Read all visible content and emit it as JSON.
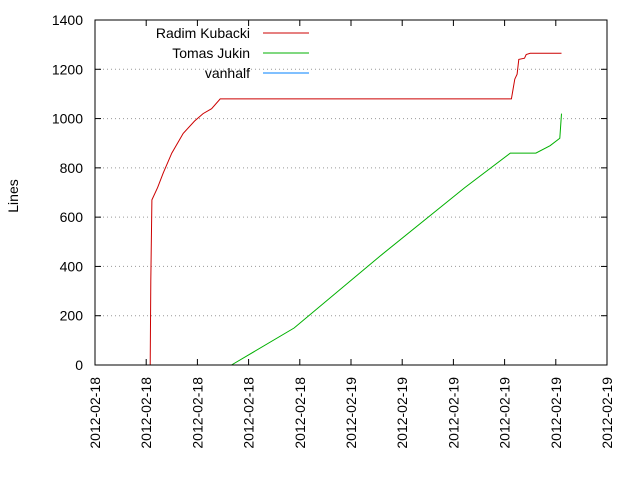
{
  "chart_data": {
    "type": "line",
    "title": "",
    "xlabel": "",
    "ylabel": "Lines",
    "ylim": [
      0,
      1400
    ],
    "xlim": [
      0,
      9
    ],
    "y_ticks": [
      0,
      200,
      400,
      600,
      800,
      1000,
      1200,
      1400
    ],
    "x_tick_labels": [
      "2012-02-18",
      "2012-02-18",
      "2012-02-18",
      "2012-02-18",
      "2012-02-18",
      "2012-02-19",
      "2012-02-19",
      "2012-02-19",
      "2012-02-19",
      "2012-02-19",
      "2012-02-19"
    ],
    "grid": {
      "horizontal": true,
      "vertical": false,
      "style": "dotted"
    },
    "legend_position": "top-left",
    "series": [
      {
        "name": "Radim Kubacki",
        "color": "#cc0000",
        "points": [
          [
            0.97,
            0
          ],
          [
            0.98,
            340
          ],
          [
            1.0,
            670
          ],
          [
            1.1,
            720
          ],
          [
            1.2,
            780
          ],
          [
            1.35,
            860
          ],
          [
            1.55,
            940
          ],
          [
            1.75,
            990
          ],
          [
            1.9,
            1020
          ],
          [
            2.05,
            1040
          ],
          [
            2.2,
            1080
          ],
          [
            2.4,
            1080
          ],
          [
            3.5,
            1080
          ],
          [
            5.0,
            1080
          ],
          [
            6.5,
            1080
          ],
          [
            7.32,
            1080
          ],
          [
            7.35,
            1120
          ],
          [
            7.38,
            1160
          ],
          [
            7.42,
            1180
          ],
          [
            7.45,
            1240
          ],
          [
            7.55,
            1245
          ],
          [
            7.58,
            1260
          ],
          [
            7.65,
            1265
          ],
          [
            8.2,
            1265
          ]
        ]
      },
      {
        "name": "Tomas Jukin",
        "color": "#00b000",
        "points": [
          [
            2.4,
            0
          ],
          [
            3.5,
            150
          ],
          [
            5.0,
            440
          ],
          [
            6.5,
            720
          ],
          [
            7.3,
            860
          ],
          [
            7.75,
            860
          ],
          [
            8.0,
            890
          ],
          [
            8.17,
            920
          ],
          [
            8.2,
            1020
          ]
        ]
      },
      {
        "name": "vanhalf",
        "color": "#0080ff",
        "points": []
      }
    ]
  }
}
